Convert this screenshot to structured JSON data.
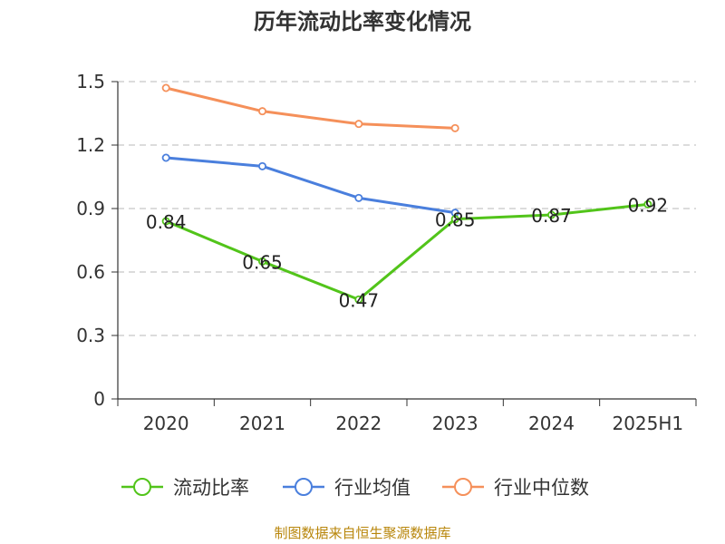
{
  "chart_data": {
    "type": "line",
    "title": "历年流动比率变化情况",
    "categories": [
      "2020",
      "2021",
      "2022",
      "2023",
      "2024",
      "2025H1"
    ],
    "y_ticks": [
      "0",
      "0.3",
      "0.6",
      "0.9",
      "1.2",
      "1.5"
    ],
    "ylim": [
      0,
      1.5
    ],
    "grid": true,
    "legend_position": "bottom",
    "series": [
      {
        "name": "流动比率",
        "color": "#52c41a",
        "values": [
          0.84,
          0.65,
          0.47,
          0.85,
          0.87,
          0.92
        ],
        "data_labels": [
          "0.84",
          "0.65",
          "0.47",
          "0.85",
          "0.87",
          "0.92"
        ]
      },
      {
        "name": "行业均值",
        "color": "#4a7fdd",
        "values": [
          1.14,
          1.1,
          0.95,
          0.88,
          null,
          null
        ]
      },
      {
        "name": "行业中位数",
        "color": "#f5905a",
        "values": [
          1.47,
          1.36,
          1.3,
          1.28,
          null,
          null
        ]
      }
    ]
  },
  "source": "制图数据来自恒生聚源数据库"
}
